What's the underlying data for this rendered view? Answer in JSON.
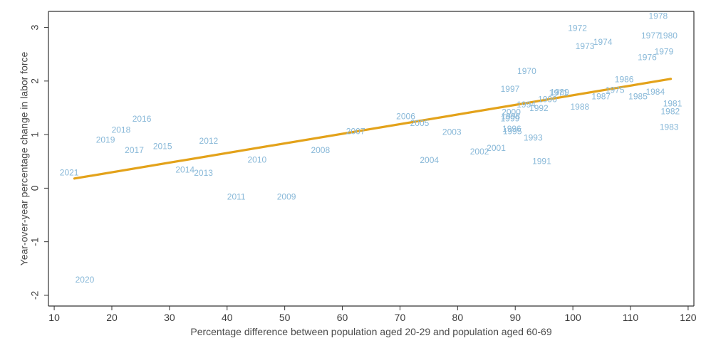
{
  "chart_data": {
    "type": "scatter",
    "title": "",
    "xlabel": "Percentage difference between population aged 20-29 and population aged 60-69",
    "ylabel": "Year-over-year percentage change in labor force",
    "xlim": [
      9,
      121
    ],
    "ylim": [
      -2.2,
      3.3
    ],
    "xticks": [
      10,
      20,
      30,
      40,
      50,
      60,
      70,
      80,
      90,
      100,
      110,
      120
    ],
    "yticks": [
      -2,
      -1,
      0,
      1,
      2,
      3
    ],
    "grid": false,
    "legend": "none",
    "colors": {
      "points": "#88b8d8",
      "fit_line": "#e3a21a",
      "axis": "#333333",
      "text": "#3b3b3b"
    },
    "fit_line": {
      "x": [
        13.5,
        117
      ],
      "y": [
        0.18,
        2.04
      ]
    },
    "points": [
      {
        "label": "1970",
        "x": 92.0,
        "y": 2.17
      },
      {
        "label": "1971",
        "x": 97.5,
        "y": 1.77
      },
      {
        "label": "1972",
        "x": 100.8,
        "y": 2.98
      },
      {
        "label": "1973",
        "x": 102.1,
        "y": 2.64
      },
      {
        "label": "1974",
        "x": 105.2,
        "y": 2.72
      },
      {
        "label": "1975",
        "x": 107.3,
        "y": 1.82
      },
      {
        "label": "1976",
        "x": 112.9,
        "y": 2.43
      },
      {
        "label": "1977",
        "x": 113.5,
        "y": 2.84
      },
      {
        "label": "1978",
        "x": 114.8,
        "y": 3.2
      },
      {
        "label": "1979",
        "x": 115.8,
        "y": 2.54
      },
      {
        "label": "1980",
        "x": 116.5,
        "y": 2.84
      },
      {
        "label": "1981",
        "x": 117.3,
        "y": 1.57
      },
      {
        "label": "1982",
        "x": 116.9,
        "y": 1.42
      },
      {
        "label": "1983",
        "x": 116.7,
        "y": 1.13
      },
      {
        "label": "1984",
        "x": 114.3,
        "y": 1.79
      },
      {
        "label": "1985",
        "x": 111.3,
        "y": 1.7
      },
      {
        "label": "1986",
        "x": 108.9,
        "y": 2.02
      },
      {
        "label": "1987",
        "x": 104.9,
        "y": 1.7
      },
      {
        "label": "1988",
        "x": 101.2,
        "y": 1.51
      },
      {
        "label": "1989",
        "x": 97.7,
        "y": 1.78
      },
      {
        "label": "1990",
        "x": 95.6,
        "y": 1.65
      },
      {
        "label": "1991",
        "x": 94.6,
        "y": 0.49
      },
      {
        "label": "1992",
        "x": 94.1,
        "y": 1.48
      },
      {
        "label": "1993",
        "x": 93.1,
        "y": 0.93
      },
      {
        "label": "1994",
        "x": 91.9,
        "y": 1.55
      },
      {
        "label": "1995",
        "x": 89.5,
        "y": 1.05
      },
      {
        "label": "1996",
        "x": 89.4,
        "y": 1.1
      },
      {
        "label": "1997",
        "x": 89.1,
        "y": 1.84
      },
      {
        "label": "1998",
        "x": 89.2,
        "y": 1.33
      },
      {
        "label": "1999",
        "x": 89.1,
        "y": 1.29
      },
      {
        "label": "2000",
        "x": 89.3,
        "y": 1.41
      },
      {
        "label": "2001",
        "x": 86.7,
        "y": 0.74
      },
      {
        "label": "2002",
        "x": 83.8,
        "y": 0.67
      },
      {
        "label": "2003",
        "x": 79.0,
        "y": 1.04
      },
      {
        "label": "2004",
        "x": 75.1,
        "y": 0.51
      },
      {
        "label": "2005",
        "x": 73.4,
        "y": 1.2
      },
      {
        "label": "2006",
        "x": 71.0,
        "y": 1.33
      },
      {
        "label": "2007",
        "x": 62.3,
        "y": 1.05
      },
      {
        "label": "2008",
        "x": 56.2,
        "y": 0.7
      },
      {
        "label": "2009",
        "x": 50.3,
        "y": -0.17
      },
      {
        "label": "2010",
        "x": 45.2,
        "y": 0.52
      },
      {
        "label": "2011",
        "x": 41.6,
        "y": -0.17
      },
      {
        "label": "2012",
        "x": 36.8,
        "y": 0.87
      },
      {
        "label": "2013",
        "x": 35.9,
        "y": 0.27
      },
      {
        "label": "2014",
        "x": 32.7,
        "y": 0.33
      },
      {
        "label": "2015",
        "x": 28.8,
        "y": 0.77
      },
      {
        "label": "2016",
        "x": 25.2,
        "y": 1.28
      },
      {
        "label": "2017",
        "x": 23.9,
        "y": 0.7
      },
      {
        "label": "2018",
        "x": 21.6,
        "y": 1.08
      },
      {
        "label": "2019",
        "x": 18.9,
        "y": 0.89
      },
      {
        "label": "2020",
        "x": 15.3,
        "y": -1.72
      },
      {
        "label": "2021",
        "x": 12.6,
        "y": 0.28
      }
    ]
  }
}
